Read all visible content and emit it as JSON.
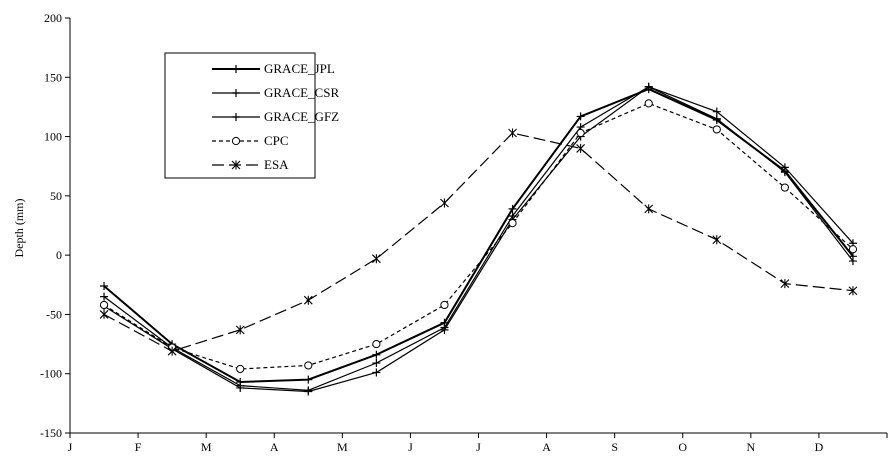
{
  "chart_data": {
    "type": "line",
    "title": "",
    "xlabel": "",
    "ylabel": "Depth (mm)",
    "ylim": [
      -150,
      200
    ],
    "yticks": [
      -150,
      -100,
      -50,
      0,
      50,
      100,
      150,
      200
    ],
    "xtick_labels": [
      "J",
      "F",
      "M",
      "A",
      "M",
      "J",
      "J",
      "A",
      "S",
      "O",
      "N",
      "D"
    ],
    "grid": false,
    "legend_position": "top-left",
    "x": [
      1,
      2,
      3,
      4,
      5,
      6,
      7,
      8,
      9,
      10,
      11,
      12
    ],
    "series": [
      {
        "name": "GRACE_JPL",
        "style": "solid-thick",
        "marker": "plus",
        "values": [
          -26,
          -75,
          -107,
          -105,
          -84,
          -57,
          39,
          117,
          140,
          114,
          71,
          -1
        ]
      },
      {
        "name": "GRACE_CSR",
        "style": "solid",
        "marker": "plus",
        "values": [
          -35,
          -78,
          -110,
          -114,
          -91,
          -61,
          33,
          108,
          142,
          121,
          74,
          10
        ]
      },
      {
        "name": "GRACE_GFZ",
        "style": "solid",
        "marker": "plus",
        "values": [
          -43,
          -79,
          -112,
          -115,
          -99,
          -63,
          30,
          100,
          142,
          115,
          70,
          -5
        ]
      },
      {
        "name": "CPC",
        "style": "short-dash",
        "marker": "circle",
        "values": [
          -42,
          -78,
          -96,
          -93,
          -75,
          -42,
          27,
          103,
          128,
          106,
          57,
          5
        ]
      },
      {
        "name": "ESA",
        "style": "long-dash",
        "marker": "asterisk",
        "values": [
          -50,
          -81,
          -63,
          -38,
          -3,
          44,
          103,
          90,
          39,
          13,
          -24,
          -30
        ]
      }
    ]
  }
}
